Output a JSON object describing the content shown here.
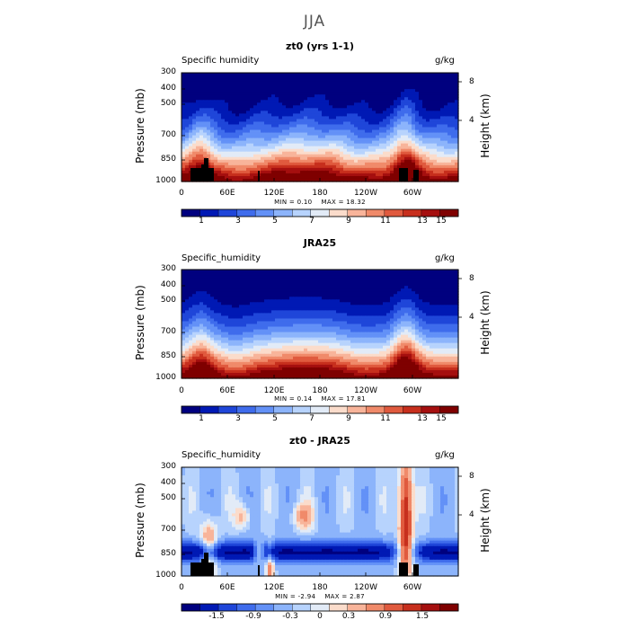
{
  "page_title": "JJA",
  "chart_data": [
    {
      "type": "heatmap",
      "title": "zt0 (yrs 1-1)",
      "variable_label": "Specific humidity",
      "units": "g/kg",
      "ylabel": "Pressure (mb)",
      "y2label": "Height (km)",
      "y_ticks": [
        "300",
        "400",
        "500",
        "700",
        "850",
        "1000"
      ],
      "y2_ticks": [
        "8",
        "4"
      ],
      "x_ticks": [
        "0",
        "60E",
        "120E",
        "180",
        "120W",
        "60W"
      ],
      "min_label": "MIN =",
      "min_value": "0.10",
      "max_label": "MAX =",
      "max_value": "18.32",
      "colorbar_labels": [
        "1",
        "3",
        "5",
        "7",
        "9",
        "11",
        "13",
        "15"
      ],
      "terrain_masked": true
    },
    {
      "type": "heatmap",
      "title": "JRA25",
      "variable_label": "Specific_humidity",
      "units": "g/kg",
      "ylabel": "Pressure (mb)",
      "y2label": "Height (km)",
      "y_ticks": [
        "300",
        "400",
        "500",
        "700",
        "850",
        "1000"
      ],
      "y2_ticks": [
        "8",
        "4"
      ],
      "x_ticks": [
        "0",
        "60E",
        "120E",
        "180",
        "120W",
        "60W"
      ],
      "min_label": "MIN =",
      "min_value": "0.14",
      "max_label": "MAX =",
      "max_value": "17.81",
      "colorbar_labels": [
        "1",
        "3",
        "5",
        "7",
        "9",
        "11",
        "13",
        "15"
      ],
      "terrain_masked": false
    },
    {
      "type": "heatmap",
      "title": "zt0 - JRA25",
      "variable_label": "Specific_humidity",
      "units": "g/kg",
      "ylabel": "Pressure (mb)",
      "y2label": "Height (km)",
      "y_ticks": [
        "300",
        "400",
        "500",
        "700",
        "850",
        "1000"
      ],
      "y2_ticks": [
        "8",
        "4"
      ],
      "x_ticks": [
        "0",
        "60E",
        "120E",
        "180",
        "120W",
        "60W"
      ],
      "min_label": "MIN =",
      "min_value": "-2.94",
      "max_label": "MAX =",
      "max_value": "2.87",
      "colorbar_labels": [
        "-1.5",
        "-0.9",
        "-0.3",
        "0",
        "0.3",
        "0.9",
        "1.5"
      ],
      "terrain_masked": true
    }
  ],
  "palette": [
    "#00007f",
    "#0019b4",
    "#1f46d9",
    "#3f6cec",
    "#6391f7",
    "#8cb4fb",
    "#b7d3fd",
    "#e2ebf7",
    "#fbdccb",
    "#f8b49a",
    "#f08a6a",
    "#e05a3e",
    "#c72f1d",
    "#a50f0f",
    "#7f0000"
  ]
}
